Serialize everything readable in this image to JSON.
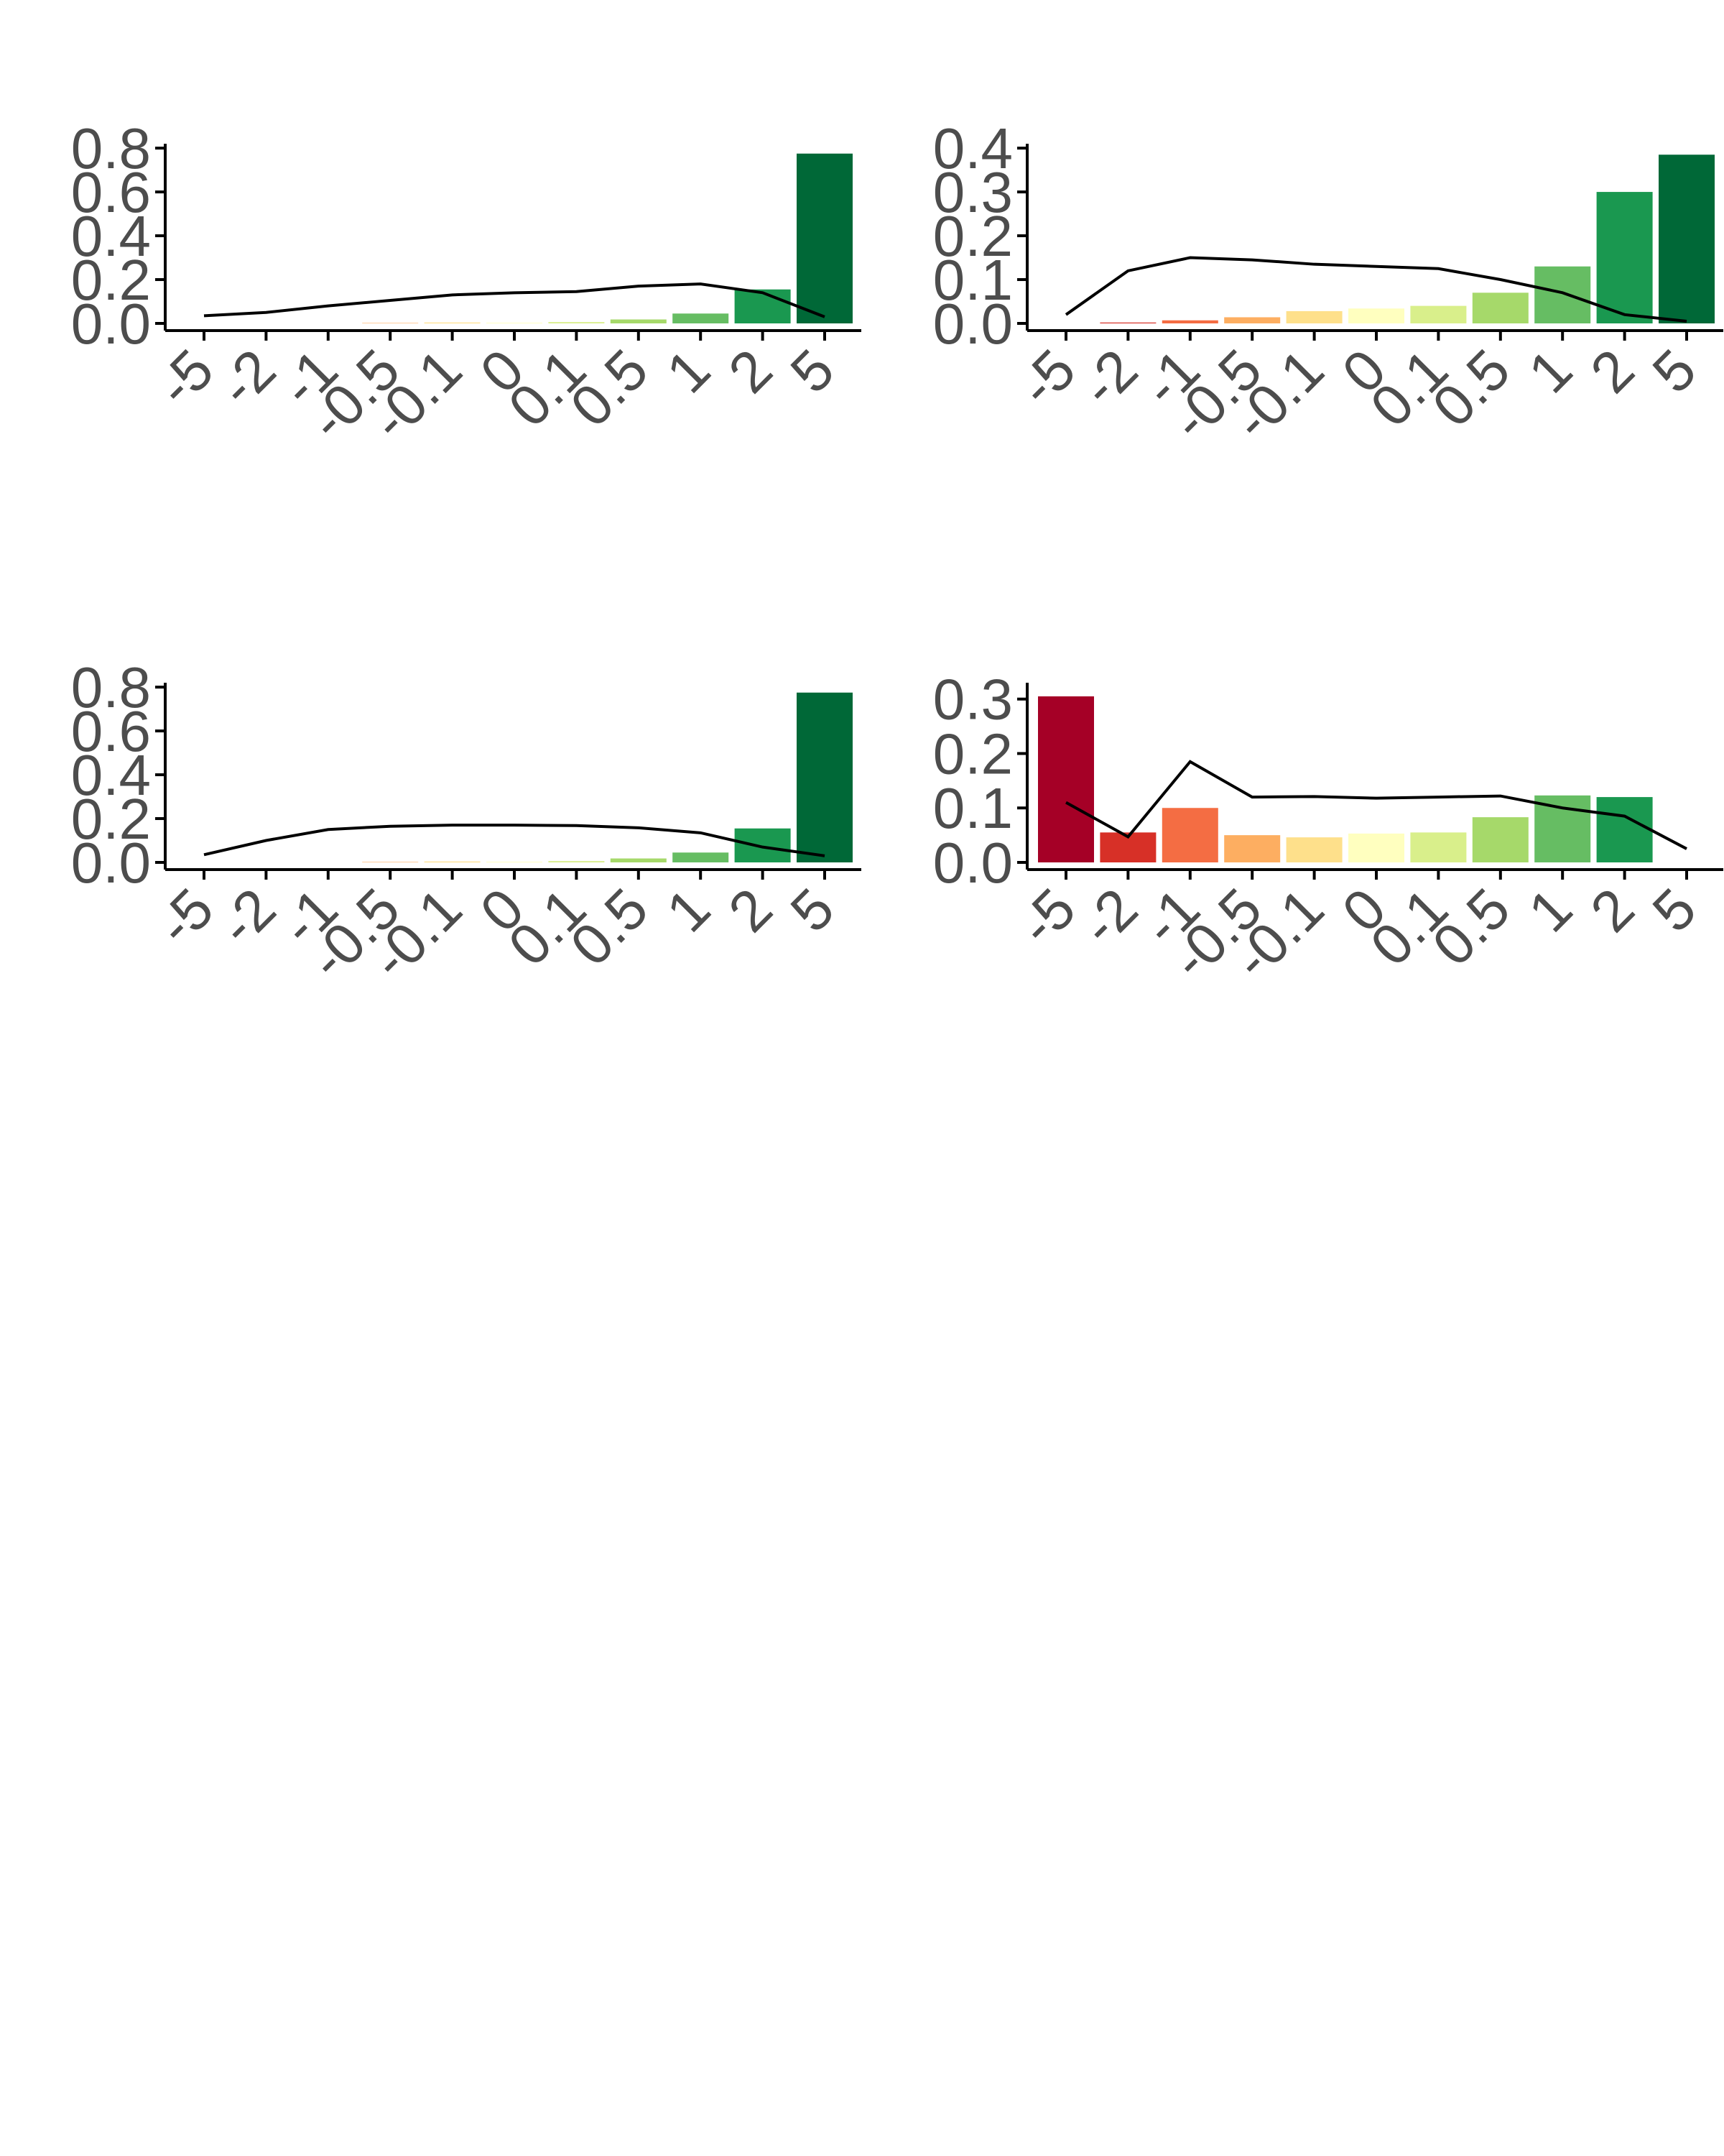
{
  "chart_data": [
    {
      "type": "bar",
      "categories": [
        "-5",
        "-2",
        "-1",
        "-0.5",
        "-0.1",
        "0",
        "0.1",
        "0.5",
        "1",
        "2",
        "5"
      ],
      "values": [
        0.0,
        0.0,
        0.0,
        0.002,
        0.004,
        0.003,
        0.006,
        0.018,
        0.045,
        0.155,
        0.775
      ],
      "line": [
        0.035,
        0.05,
        0.08,
        0.105,
        0.13,
        0.14,
        0.145,
        0.17,
        0.18,
        0.14,
        0.03
      ],
      "yticks": [
        "0.0",
        "0.2",
        "0.4",
        "0.6",
        "0.8"
      ],
      "ylim": [
        0,
        0.82
      ],
      "title": "",
      "xlabel": "",
      "ylabel": ""
    },
    {
      "type": "bar",
      "categories": [
        "-5",
        "-2",
        "-1",
        "-0.5",
        "-0.1",
        "0",
        "0.1",
        "0.5",
        "1",
        "2",
        "5"
      ],
      "values": [
        0.0,
        0.002,
        0.007,
        0.014,
        0.028,
        0.034,
        0.04,
        0.07,
        0.13,
        0.3,
        0.385
      ],
      "line": [
        0.02,
        0.12,
        0.15,
        0.145,
        0.135,
        0.13,
        0.125,
        0.1,
        0.07,
        0.02,
        0.005
      ],
      "yticks": [
        "0.0",
        "0.1",
        "0.2",
        "0.3",
        "0.4"
      ],
      "ylim": [
        0,
        0.41
      ],
      "title": "",
      "xlabel": "",
      "ylabel": ""
    },
    {
      "type": "bar",
      "categories": [
        "-5",
        "-2",
        "-1",
        "-0.5",
        "-0.1",
        "0",
        "0.1",
        "0.5",
        "1",
        "2",
        "5"
      ],
      "values": [
        0.0,
        0.0,
        0.0,
        0.002,
        0.004,
        0.003,
        0.006,
        0.018,
        0.045,
        0.155,
        0.775
      ],
      "line": [
        0.035,
        0.1,
        0.15,
        0.165,
        0.17,
        0.17,
        0.168,
        0.158,
        0.135,
        0.07,
        0.03
      ],
      "yticks": [
        "0.0",
        "0.2",
        "0.4",
        "0.6",
        "0.8"
      ],
      "ylim": [
        0,
        0.82
      ],
      "title": "",
      "xlabel": "",
      "ylabel": ""
    },
    {
      "type": "bar",
      "categories": [
        "-5",
        "-2",
        "-1",
        "-0.5",
        "-0.1",
        "0",
        "0.1",
        "0.5",
        "1",
        "2",
        "5"
      ],
      "values": [
        0.305,
        0.055,
        0.1,
        0.05,
        0.046,
        0.053,
        0.055,
        0.083,
        0.123,
        0.12,
        0.0
      ],
      "line": [
        0.11,
        0.047,
        0.185,
        0.12,
        0.121,
        0.118,
        0.12,
        0.122,
        0.1,
        0.085,
        0.025
      ],
      "yticks": [
        "0.0",
        "0.1",
        "0.2",
        "0.3"
      ],
      "ylim": [
        0,
        0.33
      ],
      "title": "",
      "xlabel": "",
      "ylabel": ""
    }
  ],
  "colors": {
    "bars": [
      "#a50026",
      "#d73027",
      "#f46d43",
      "#fdae61",
      "#fee08b",
      "#ffffbf",
      "#d9ef8b",
      "#a6d96a",
      "#66bd63",
      "#1a9850",
      "#006837"
    ],
    "line": "#000000",
    "axis": "#000000",
    "tick_text": "#4d4d4d"
  }
}
